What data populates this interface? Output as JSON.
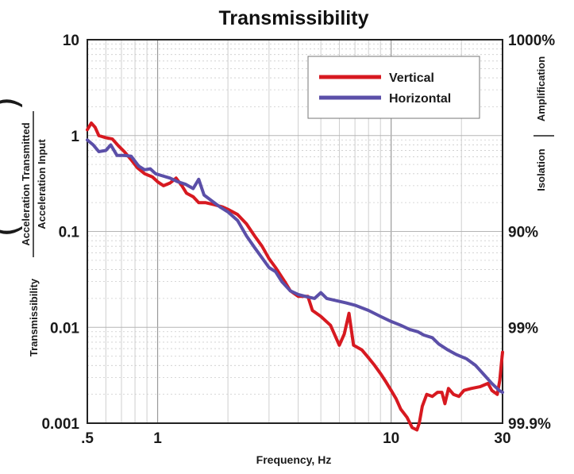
{
  "chart_data": {
    "type": "line",
    "title": "Transmissibility",
    "xlabel": "Frequency, Hz",
    "ylabel": {
      "prefix": "Transmissibility",
      "numerator": "Acceleration Transmitted",
      "denominator": "Acceleration Input"
    },
    "x_scale": "log",
    "y_scale": "log",
    "xlim": [
      0.5,
      30
    ],
    "ylim": [
      0.001,
      10
    ],
    "x_ticks": [
      {
        "value": 0.5,
        "label": ".5"
      },
      {
        "value": 1,
        "label": "1"
      },
      {
        "value": 10,
        "label": "10"
      },
      {
        "value": 30,
        "label": "30"
      }
    ],
    "y_ticks": [
      {
        "value": 10,
        "label": "10"
      },
      {
        "value": 1,
        "label": "1"
      },
      {
        "value": 0.1,
        "label": "0.1"
      },
      {
        "value": 0.01,
        "label": "0.01"
      },
      {
        "value": 0.001,
        "label": "0.001"
      }
    ],
    "right_ticks": [
      {
        "value": 10,
        "label": "1000%"
      },
      {
        "value": 0.1,
        "label": "90%"
      },
      {
        "value": 0.01,
        "label": "99%"
      },
      {
        "value": 0.001,
        "label": "99.9%"
      }
    ],
    "right_axis_labels": {
      "upper": "Amplification",
      "lower": "Isolation"
    },
    "grid": true,
    "legend_position": "top-right",
    "series": [
      {
        "name": "Vertical",
        "color": "#d71920",
        "points": [
          [
            0.5,
            1.15
          ],
          [
            0.52,
            1.35
          ],
          [
            0.54,
            1.22
          ],
          [
            0.56,
            1.0
          ],
          [
            0.6,
            0.95
          ],
          [
            0.64,
            0.92
          ],
          [
            0.68,
            0.78
          ],
          [
            0.72,
            0.68
          ],
          [
            0.77,
            0.56
          ],
          [
            0.82,
            0.46
          ],
          [
            0.88,
            0.4
          ],
          [
            0.95,
            0.37
          ],
          [
            1.0,
            0.33
          ],
          [
            1.06,
            0.3
          ],
          [
            1.13,
            0.32
          ],
          [
            1.2,
            0.36
          ],
          [
            1.27,
            0.3
          ],
          [
            1.33,
            0.25
          ],
          [
            1.42,
            0.23
          ],
          [
            1.5,
            0.2
          ],
          [
            1.6,
            0.2
          ],
          [
            1.75,
            0.19
          ],
          [
            1.9,
            0.18
          ],
          [
            2.0,
            0.17
          ],
          [
            2.2,
            0.15
          ],
          [
            2.4,
            0.12
          ],
          [
            2.6,
            0.09
          ],
          [
            2.8,
            0.07
          ],
          [
            3.0,
            0.052
          ],
          [
            3.2,
            0.042
          ],
          [
            3.5,
            0.03
          ],
          [
            3.7,
            0.024
          ],
          [
            4.0,
            0.021
          ],
          [
            4.4,
            0.021
          ],
          [
            4.6,
            0.015
          ],
          [
            5.0,
            0.013
          ],
          [
            5.5,
            0.0105
          ],
          [
            6.0,
            0.0065
          ],
          [
            6.3,
            0.0085
          ],
          [
            6.6,
            0.014
          ],
          [
            6.9,
            0.0065
          ],
          [
            7.5,
            0.0058
          ],
          [
            8.0,
            0.0048
          ],
          [
            8.5,
            0.004
          ],
          [
            9.0,
            0.0033
          ],
          [
            9.5,
            0.0027
          ],
          [
            10.0,
            0.0022
          ],
          [
            10.5,
            0.0018
          ],
          [
            11.0,
            0.0014
          ],
          [
            11.7,
            0.00115
          ],
          [
            12.3,
            0.0009
          ],
          [
            12.9,
            0.00085
          ],
          [
            13.2,
            0.001
          ],
          [
            13.6,
            0.0015
          ],
          [
            14.2,
            0.002
          ],
          [
            15.0,
            0.0019
          ],
          [
            15.8,
            0.0021
          ],
          [
            16.5,
            0.0021
          ],
          [
            17.0,
            0.0016
          ],
          [
            17.6,
            0.0023
          ],
          [
            18.5,
            0.002
          ],
          [
            19.5,
            0.0019
          ],
          [
            20.5,
            0.0022
          ],
          [
            22.0,
            0.0023
          ],
          [
            24.0,
            0.0024
          ],
          [
            26.0,
            0.0026
          ],
          [
            27.0,
            0.0022
          ],
          [
            28.5,
            0.002
          ],
          [
            29.2,
            0.0028
          ],
          [
            29.6,
            0.004
          ],
          [
            30.0,
            0.0055
          ]
        ]
      },
      {
        "name": "Horizontal",
        "color": "#5b4fa8",
        "points": [
          [
            0.5,
            0.9
          ],
          [
            0.53,
            0.8
          ],
          [
            0.56,
            0.68
          ],
          [
            0.6,
            0.7
          ],
          [
            0.63,
            0.8
          ],
          [
            0.67,
            0.62
          ],
          [
            0.72,
            0.62
          ],
          [
            0.77,
            0.61
          ],
          [
            0.83,
            0.48
          ],
          [
            0.88,
            0.44
          ],
          [
            0.93,
            0.45
          ],
          [
            0.98,
            0.4
          ],
          [
            1.05,
            0.38
          ],
          [
            1.13,
            0.36
          ],
          [
            1.22,
            0.33
          ],
          [
            1.32,
            0.31
          ],
          [
            1.42,
            0.28
          ],
          [
            1.5,
            0.35
          ],
          [
            1.58,
            0.24
          ],
          [
            1.7,
            0.21
          ],
          [
            1.85,
            0.18
          ],
          [
            2.0,
            0.16
          ],
          [
            2.2,
            0.13
          ],
          [
            2.4,
            0.09
          ],
          [
            2.6,
            0.068
          ],
          [
            2.8,
            0.053
          ],
          [
            3.0,
            0.042
          ],
          [
            3.2,
            0.038
          ],
          [
            3.4,
            0.03
          ],
          [
            3.7,
            0.024
          ],
          [
            4.0,
            0.022
          ],
          [
            4.3,
            0.021
          ],
          [
            4.7,
            0.02
          ],
          [
            5.0,
            0.023
          ],
          [
            5.3,
            0.02
          ],
          [
            5.8,
            0.019
          ],
          [
            6.4,
            0.018
          ],
          [
            7.0,
            0.017
          ],
          [
            8.0,
            0.015
          ],
          [
            9.0,
            0.013
          ],
          [
            10.0,
            0.0115
          ],
          [
            11.0,
            0.0105
          ],
          [
            12.0,
            0.0095
          ],
          [
            13.0,
            0.009
          ],
          [
            13.8,
            0.0083
          ],
          [
            15.0,
            0.0078
          ],
          [
            16.0,
            0.0067
          ],
          [
            17.5,
            0.0058
          ],
          [
            19.0,
            0.0052
          ],
          [
            21.0,
            0.0047
          ],
          [
            23.0,
            0.004
          ],
          [
            25.0,
            0.0032
          ],
          [
            27.0,
            0.0026
          ],
          [
            29.0,
            0.0022
          ],
          [
            30.0,
            0.0021
          ]
        ]
      }
    ]
  }
}
